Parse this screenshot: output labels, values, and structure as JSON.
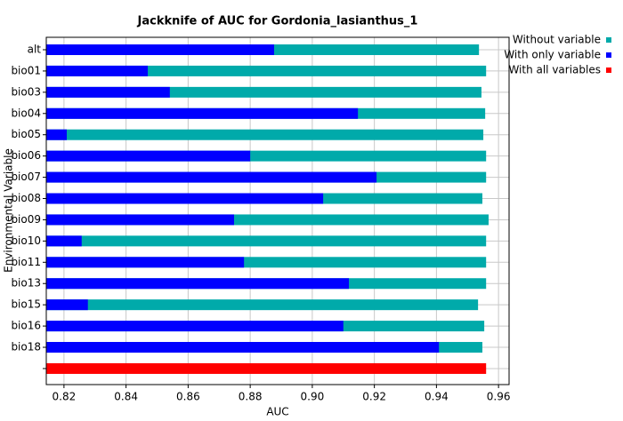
{
  "chart_data": {
    "type": "bar",
    "orientation": "horizontal",
    "title": "Jackknife of AUC for Gordonia_lasianthus_1",
    "xlabel": "AUC",
    "ylabel": "Environmental Variable",
    "categories": [
      "alt",
      "bio01",
      "bio03",
      "bio04",
      "bio05",
      "bio06",
      "bio07",
      "bio08",
      "bio09",
      "bio10",
      "bio11",
      "bio13",
      "bio15",
      "bio16",
      "bio18",
      null
    ],
    "series": [
      {
        "name": "Without variable",
        "color": "#00aaaa",
        "values": [
          0.9537,
          0.956,
          0.9545,
          0.9557,
          0.9551,
          0.956,
          0.956,
          0.9548,
          0.9568,
          0.956,
          0.956,
          0.956,
          0.9534,
          0.9554,
          0.9548,
          null
        ]
      },
      {
        "name": "With only variable",
        "color": "#0000ff",
        "values": [
          0.8877,
          0.847,
          0.8541,
          0.9147,
          0.8209,
          0.88,
          0.9207,
          0.9035,
          0.8748,
          0.8257,
          0.878,
          0.9118,
          0.8277,
          0.91,
          0.9408,
          null
        ]
      },
      {
        "name": "With all variables",
        "color": "#ff0000",
        "values": [
          null,
          null,
          null,
          null,
          null,
          null,
          null,
          null,
          null,
          null,
          null,
          null,
          null,
          null,
          null,
          0.956
        ]
      }
    ],
    "xlim": [
      0.8143,
      0.9634
    ],
    "xticks": [
      0.82,
      0.84,
      0.86,
      0.88,
      {
        "value": 0.9,
        "label": "0.90"
      },
      0.92,
      0.94,
      0.96
    ],
    "grid": true,
    "legend": "right"
  }
}
